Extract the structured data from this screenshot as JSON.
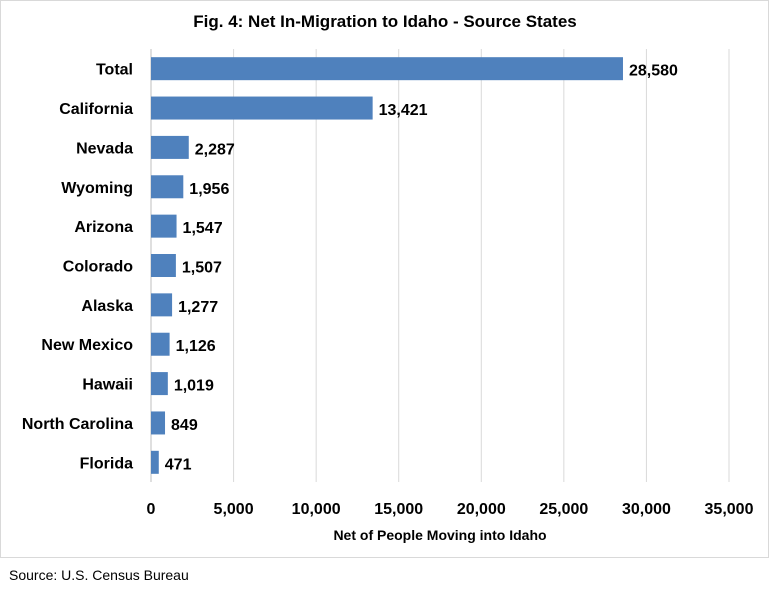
{
  "chart_data": {
    "type": "bar",
    "orientation": "horizontal",
    "title": "Fig. 4: Net In-Migration to Idaho - Source States",
    "xlabel": "Net of People Moving into Idaho",
    "ylabel": "",
    "categories": [
      "Total",
      "California",
      "Nevada",
      "Wyoming",
      "Arizona",
      "Colorado",
      "Alaska",
      "New Mexico",
      "Hawaii",
      "North Carolina",
      "Florida"
    ],
    "values": [
      28580,
      13421,
      2287,
      1956,
      1547,
      1507,
      1277,
      1126,
      1019,
      849,
      471
    ],
    "value_labels": [
      "28,580",
      "13,421",
      "2,287",
      "1,956",
      "1,547",
      "1,507",
      "1,277",
      "1,126",
      "1,019",
      "849",
      "471"
    ],
    "xlim": [
      0,
      35000
    ],
    "xticks": [
      0,
      5000,
      10000,
      15000,
      20000,
      25000,
      30000,
      35000
    ],
    "xtick_labels": [
      "0",
      "5,000",
      "10,000",
      "15,000",
      "20,000",
      "25,000",
      "30,000",
      "35,000"
    ],
    "grid": "vertical",
    "legend": "none",
    "bar_color": "#4f81bd",
    "grid_color": "#d9d9d9"
  },
  "source_note": "Source: U.S. Census Bureau"
}
